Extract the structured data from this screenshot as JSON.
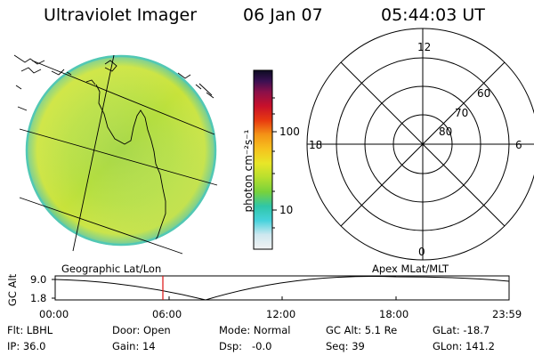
{
  "header": {
    "title": "Ultraviolet Imager",
    "date": "06 Jan 07",
    "time": "05:44:03 UT"
  },
  "colorbar": {
    "unit_label": "photon cm⁻²s⁻¹",
    "ticks": [
      "100",
      "10"
    ]
  },
  "polar": {
    "lat_labels": [
      "80",
      "70",
      "60"
    ],
    "mlt_labels": {
      "top": "12",
      "left": "18",
      "right": "6",
      "bottom": "0"
    }
  },
  "timeline": {
    "left_title": "Geographic Lat/Lon",
    "right_title": "Apex MLat/MLT",
    "axis_label": "GC Alt",
    "y_max": "9.0",
    "y_min": "1.8",
    "time_ticks": [
      "00:00",
      "06:00",
      "12:00",
      "18:00",
      "23:59"
    ]
  },
  "status": {
    "flt": "Flt: LBHL",
    "ip": "IP: 36.0",
    "door": "Door: Open",
    "gain": "Gain: 14",
    "mode": "Mode: Normal",
    "dsp": "Dsp:   -0.0",
    "gcalt": "GC Alt: 5.1 Re",
    "seq": "Seq: 39",
    "glat": "GLat: -18.7",
    "glon": "GLon: 141.2"
  },
  "colors": {
    "cursor": "#dd1111",
    "disk_main": "#b4de3c",
    "disk_edge": "#41c9b9"
  }
}
